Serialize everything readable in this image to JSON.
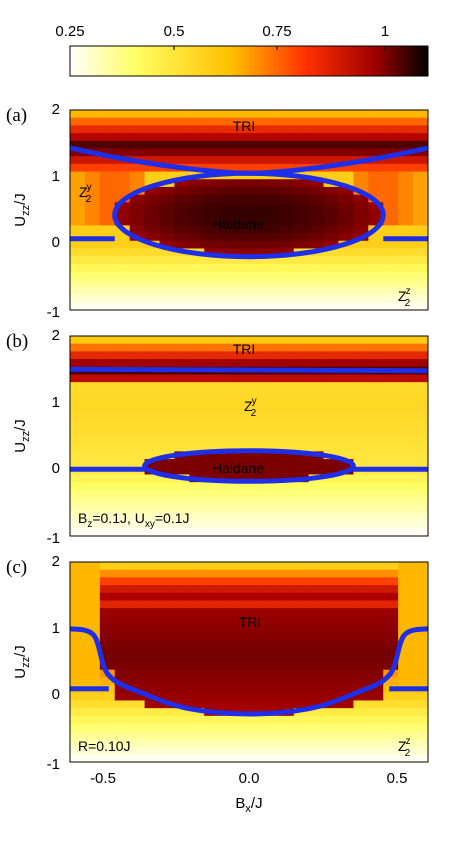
{
  "colorbar": {
    "ticks": [
      "0.25",
      "0.5",
      "0.75",
      "1"
    ],
    "tick_values": [
      0.25,
      0.5,
      0.75,
      1.0
    ],
    "range": [
      0.25,
      1.1
    ],
    "colormap": "hot (reversed): white-yellow-orange-red-black",
    "stops": [
      "#ffffff",
      "#ffff66",
      "#ffc000",
      "#ff4000",
      "#b00000",
      "#000000"
    ]
  },
  "axes": {
    "ylabel_main": "U",
    "ylabel_sub": "zz",
    "ylabel_tail": "/J",
    "xlabel_main": "B",
    "xlabel_sub": "x",
    "xlabel_tail": "/J",
    "yticks": [
      "2",
      "1",
      "0",
      "-1"
    ],
    "ytick_values": [
      2,
      1,
      0,
      -1
    ],
    "xticks": [
      "-0.5",
      "0.0",
      "0.5"
    ],
    "xtick_values": [
      -0.5,
      0.0,
      0.5
    ],
    "xlim": [
      -0.6,
      0.6
    ],
    "ylim": [
      -1,
      2
    ]
  },
  "boundary_color": "#1f2ee8",
  "chart_data": [
    {
      "type": "heatmap",
      "panel": "(a)",
      "labels": {
        "tri": "TRI",
        "haldane": "Haldane",
        "z2y_main": "Z",
        "z2y_sup": "y",
        "z2y_sub": "2",
        "z2z_main": "Z",
        "z2z_sup": "z",
        "z2z_sub": "2"
      },
      "phase_boundaries": {
        "upper_curve": [
          [
            -0.6,
            1.43
          ],
          [
            -0.4,
            1.25
          ],
          [
            -0.2,
            1.12
          ],
          [
            0.0,
            1.05
          ],
          [
            0.2,
            1.12
          ],
          [
            0.4,
            1.25
          ],
          [
            0.6,
            1.43
          ]
        ],
        "haldane_ellipse": {
          "center": [
            0.0,
            0.25
          ],
          "x_halfwidth": 0.45,
          "y_top": 1.05,
          "y_bottom": -0.2
        },
        "baseline_y": 0.07
      }
    },
    {
      "type": "heatmap",
      "panel": "(b)",
      "labels": {
        "tri": "TRI",
        "haldane": "Haldane",
        "z2y_main": "Z",
        "z2y_sup": "y",
        "z2y_sub": "2",
        "note_b": "B",
        "note_b_sub": "z",
        "note_mid": "=0.1J, U",
        "note_u_sub": "xy",
        "note_tail": "=0.1J"
      },
      "phase_boundaries": {
        "upper_line": [
          [
            -0.6,
            1.5
          ],
          [
            0.6,
            1.48
          ]
        ],
        "haldane_ellipse": {
          "center": [
            0.0,
            0.05
          ],
          "x_halfwidth": 0.35,
          "y_top": 0.28,
          "y_bottom": -0.18
        },
        "baseline_y": 0.0
      }
    },
    {
      "type": "heatmap",
      "panel": "(c)",
      "labels": {
        "tri": "TRI",
        "note_r": "R=0.10J",
        "z2z_main": "Z",
        "z2z_sup": "z",
        "z2z_sub": "2"
      },
      "phase_boundaries": {
        "u_curve": [
          [
            -0.6,
            1.0
          ],
          [
            -0.52,
            0.9
          ],
          [
            -0.47,
            0.3
          ],
          [
            -0.35,
            0.02
          ],
          [
            -0.2,
            -0.2
          ],
          [
            0.0,
            -0.28
          ],
          [
            0.2,
            -0.2
          ],
          [
            0.35,
            0.02
          ],
          [
            0.47,
            0.3
          ],
          [
            0.52,
            0.9
          ],
          [
            0.6,
            1.0
          ]
        ],
        "baseline_y": 0.1
      }
    }
  ]
}
